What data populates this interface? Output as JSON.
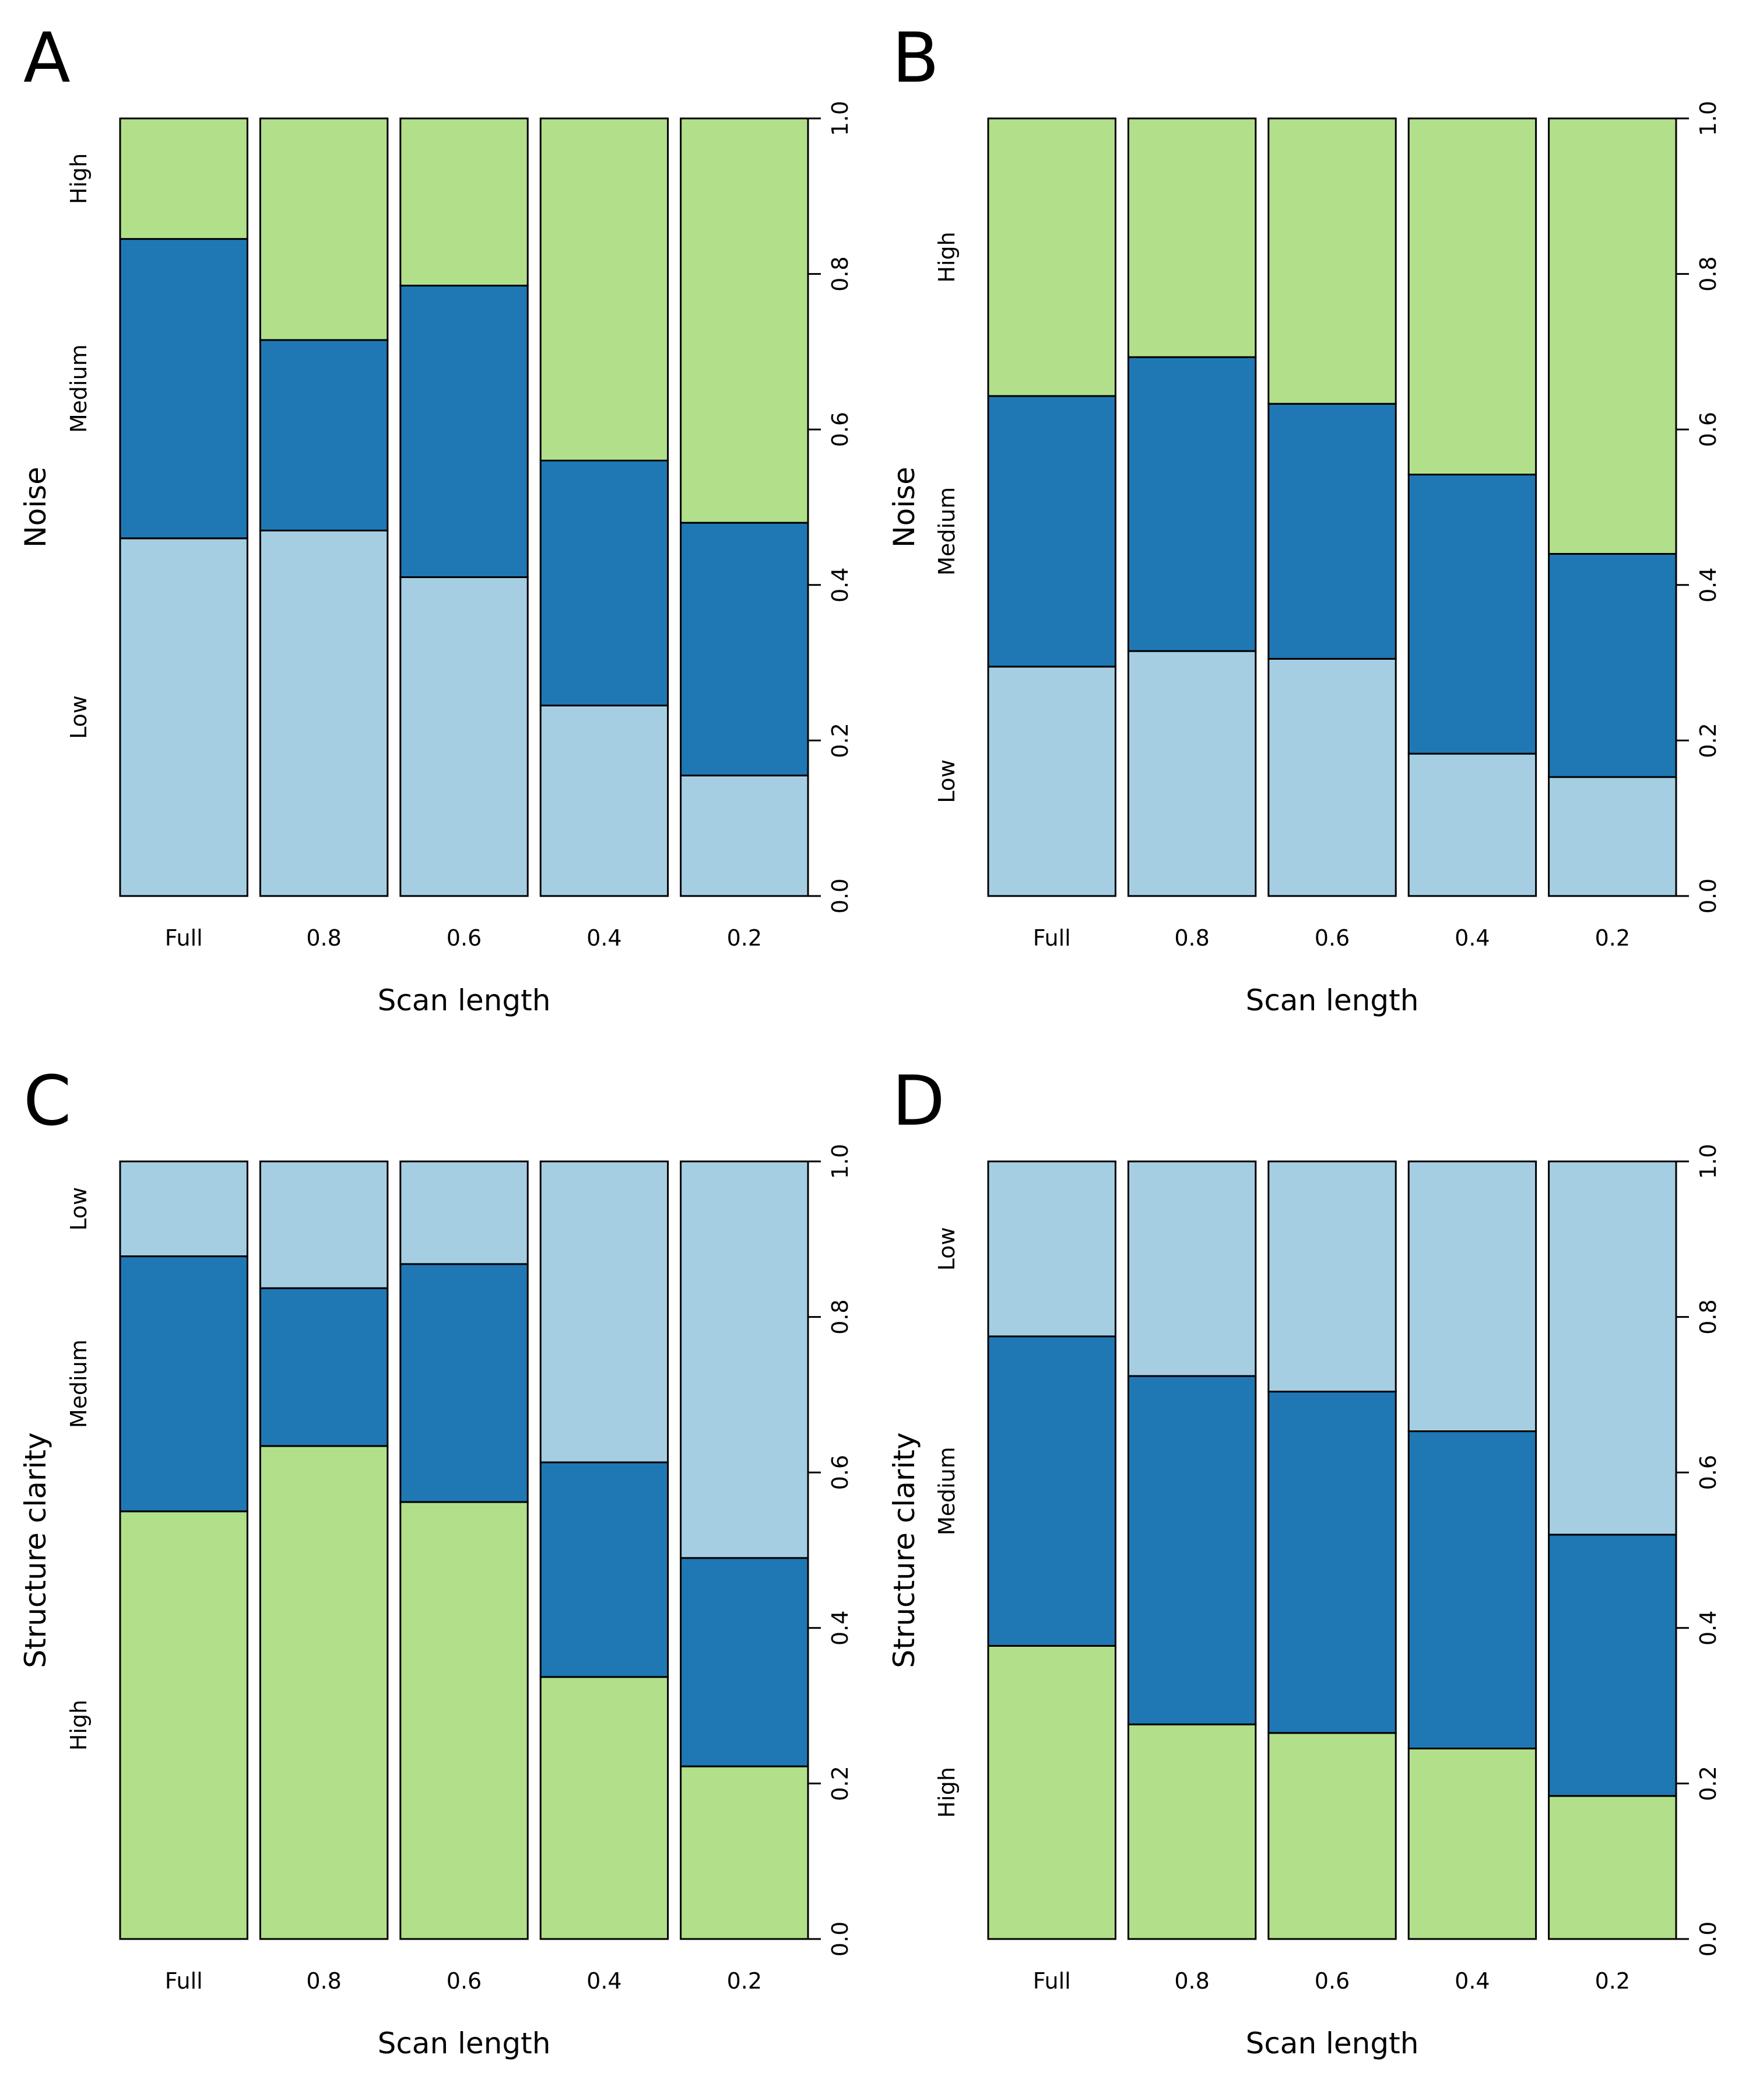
{
  "colors": {
    "Low": "#a6cee3",
    "Medium": "#1f78b4",
    "High": "#b2df8a"
  },
  "chart_data": [
    {
      "panel": "A",
      "type": "bar",
      "stacked": true,
      "xlabel": "Scan length",
      "ylabel": "Noise",
      "ylim": [
        0,
        1
      ],
      "yticks": [
        "0.0",
        "0.2",
        "0.4",
        "0.6",
        "0.8",
        "1.0"
      ],
      "y_axis_side": "right",
      "categories": [
        "Full",
        "0.8",
        "0.6",
        "0.4",
        "0.2"
      ],
      "level_order": [
        "Low",
        "Medium",
        "High"
      ],
      "series": [
        {
          "name": "Low",
          "values": [
            0.46,
            0.47,
            0.41,
            0.245,
            0.155
          ]
        },
        {
          "name": "Medium",
          "values": [
            0.385,
            0.245,
            0.375,
            0.315,
            0.325
          ]
        },
        {
          "name": "High",
          "values": [
            0.155,
            0.285,
            0.215,
            0.44,
            0.52
          ]
        }
      ]
    },
    {
      "panel": "B",
      "type": "bar",
      "stacked": true,
      "xlabel": "Scan length",
      "ylabel": "Noise",
      "ylim": [
        0,
        1
      ],
      "yticks": [
        "0.0",
        "0.2",
        "0.4",
        "0.6",
        "0.8",
        "1.0"
      ],
      "y_axis_side": "right",
      "categories": [
        "Full",
        "0.8",
        "0.6",
        "0.4",
        "0.2"
      ],
      "level_order": [
        "Low",
        "Medium",
        "High"
      ],
      "series": [
        {
          "name": "Low",
          "values": [
            0.295,
            0.315,
            0.305,
            0.183,
            0.153
          ]
        },
        {
          "name": "Medium",
          "values": [
            0.348,
            0.378,
            0.328,
            0.359,
            0.287
          ]
        },
        {
          "name": "High",
          "values": [
            0.357,
            0.307,
            0.367,
            0.458,
            0.56
          ]
        }
      ]
    },
    {
      "panel": "C",
      "type": "bar",
      "stacked": true,
      "xlabel": "Scan length",
      "ylabel": "Structure clarity",
      "ylim": [
        0,
        1
      ],
      "yticks": [
        "0.0",
        "0.2",
        "0.4",
        "0.6",
        "0.8",
        "1.0"
      ],
      "y_axis_side": "right",
      "categories": [
        "Full",
        "0.8",
        "0.6",
        "0.4",
        "0.2"
      ],
      "level_order": [
        "High",
        "Medium",
        "Low"
      ],
      "series": [
        {
          "name": "High",
          "values": [
            0.55,
            0.634,
            0.562,
            0.337,
            0.222
          ]
        },
        {
          "name": "Medium",
          "values": [
            0.328,
            0.203,
            0.306,
            0.276,
            0.268
          ]
        },
        {
          "name": "Low",
          "values": [
            0.122,
            0.163,
            0.132,
            0.387,
            0.51
          ]
        }
      ]
    },
    {
      "panel": "D",
      "type": "bar",
      "stacked": true,
      "xlabel": "Scan length",
      "ylabel": "Structure clarity",
      "ylim": [
        0,
        1
      ],
      "yticks": [
        "0.0",
        "0.2",
        "0.4",
        "0.6",
        "0.8",
        "1.0"
      ],
      "y_axis_side": "right",
      "categories": [
        "Full",
        "0.8",
        "0.6",
        "0.4",
        "0.2"
      ],
      "level_order": [
        "High",
        "Medium",
        "Low"
      ],
      "series": [
        {
          "name": "High",
          "values": [
            0.377,
            0.276,
            0.265,
            0.245,
            0.184
          ]
        },
        {
          "name": "Medium",
          "values": [
            0.398,
            0.448,
            0.439,
            0.408,
            0.336
          ]
        },
        {
          "name": "Low",
          "values": [
            0.225,
            0.276,
            0.296,
            0.347,
            0.48
          ]
        }
      ]
    }
  ]
}
